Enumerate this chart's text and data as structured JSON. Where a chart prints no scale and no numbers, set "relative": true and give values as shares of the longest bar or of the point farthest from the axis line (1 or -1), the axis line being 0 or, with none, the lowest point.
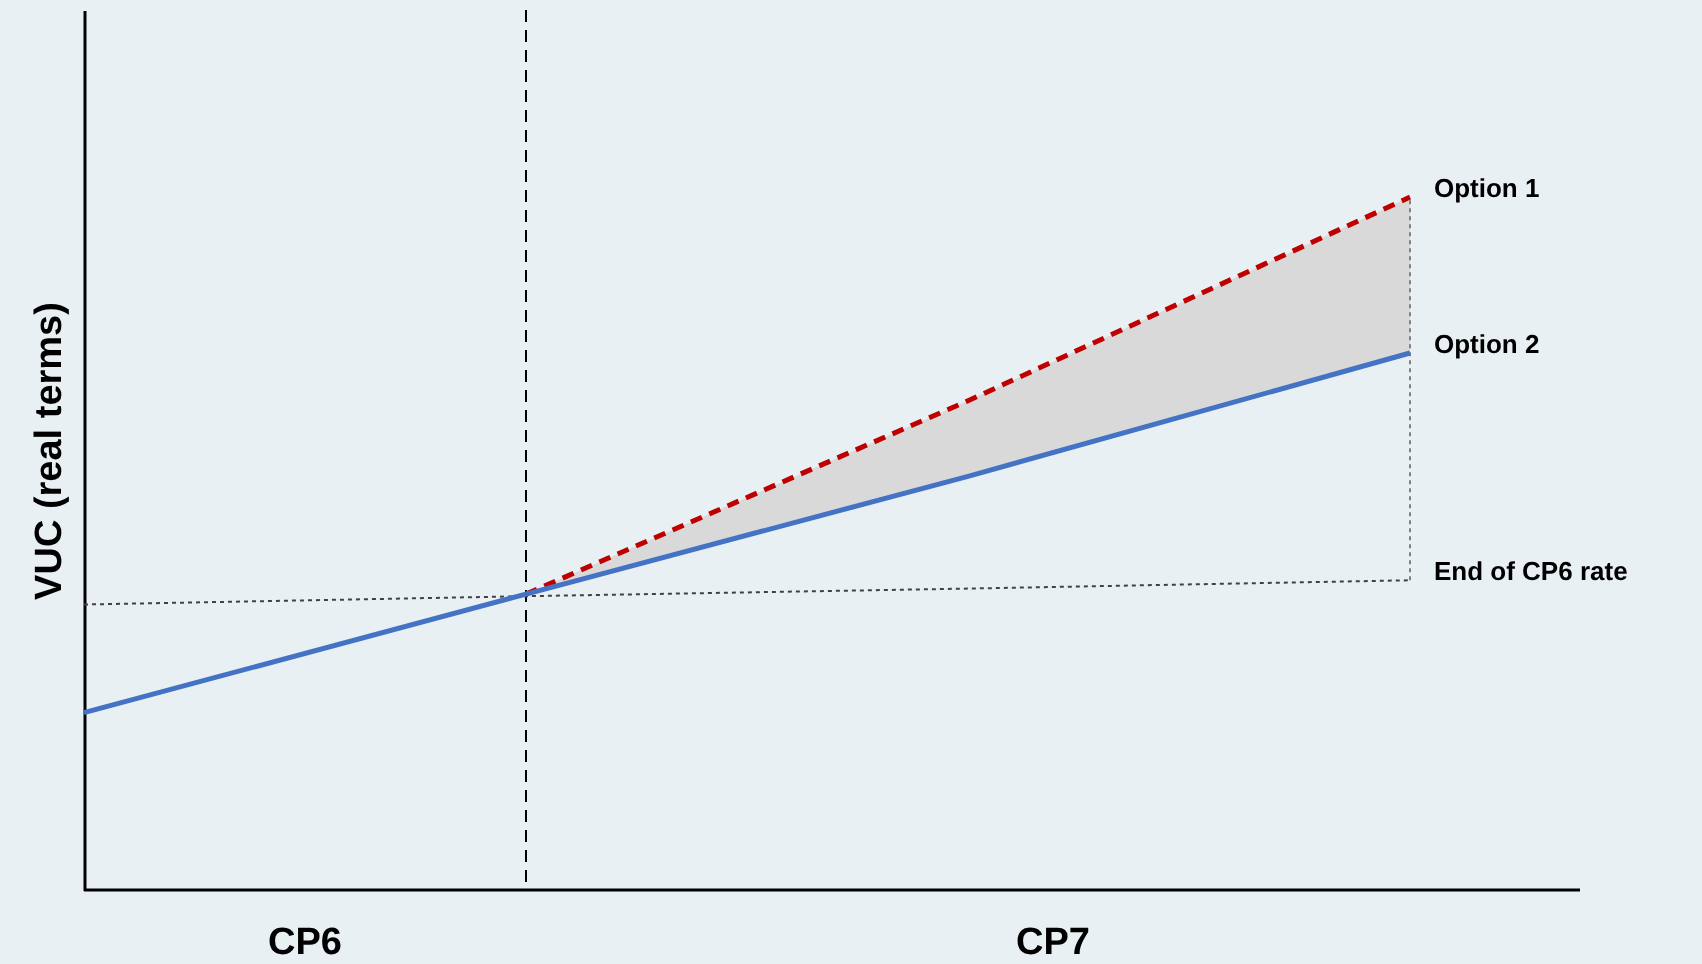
{
  "chart_data": {
    "type": "line",
    "relative": true,
    "ylabel": "VUC (real terms)",
    "categories": [
      null,
      null,
      null,
      null
    ],
    "series": [
      {
        "name": "Option 1",
        "color": "#c00000",
        "line_style": "dashed",
        "values": [
          null,
          0.427,
          0.706,
          1
        ],
        "lower": [
          null,
          0.427,
          0.597,
          0.775
        ],
        "upper": [
          null,
          0.427,
          0.706,
          1
        ]
      },
      {
        "name": "Option 2",
        "color": "#4472c4",
        "line_style": "solid",
        "values": [
          0.256,
          0.427,
          0.597,
          0.775
        ]
      },
      {
        "name": "End of CP6 rate",
        "color": "#404040",
        "line_style": "dotted",
        "values": [
          0.412,
          0.424,
          0.435,
          0.447
        ]
      }
    ],
    "annotations": [
      "CP6",
      "CP7"
    ]
  }
}
